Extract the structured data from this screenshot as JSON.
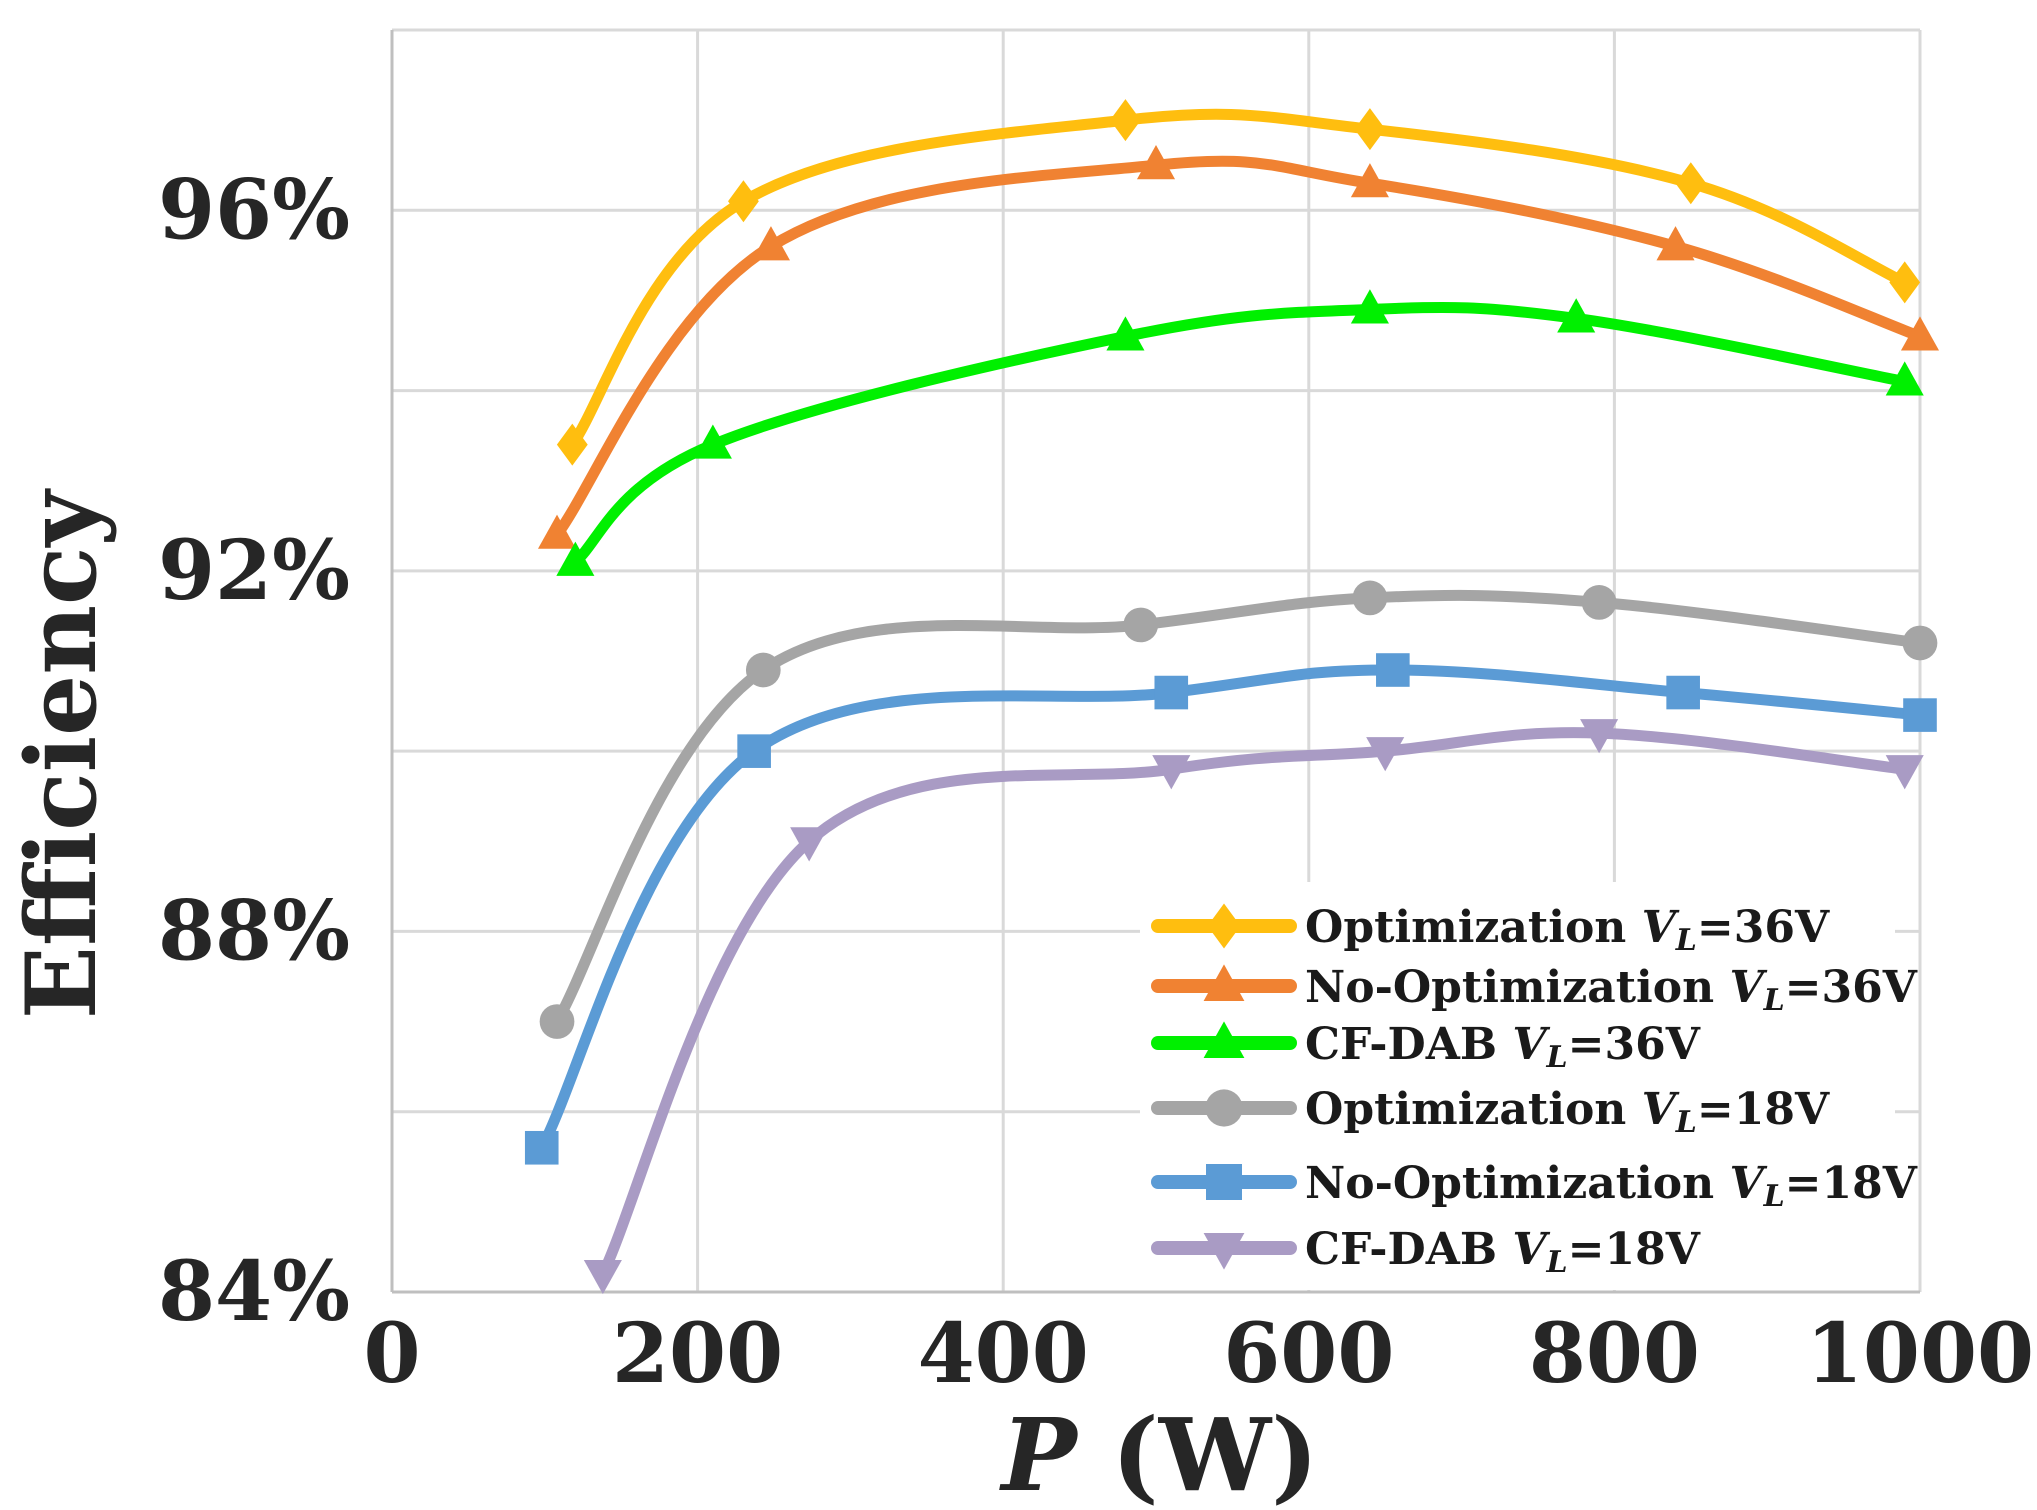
{
  "chart_data": {
    "type": "line",
    "title": "",
    "xlabel": {
      "symbol": "P",
      "unit": " (W)"
    },
    "ylabel": "Efficiency",
    "xlim": [
      0,
      1000
    ],
    "ylim": [
      84,
      98
    ],
    "x_ticks": [
      0,
      200,
      400,
      600,
      800,
      1000
    ],
    "x_tick_labels": [
      "0",
      "200",
      "400",
      "600",
      "800",
      "1000"
    ],
    "y_ticks": [
      84,
      88,
      92,
      96
    ],
    "y_tick_labels": [
      "84%",
      "88%",
      "92%",
      "96%"
    ],
    "y_minor_gridlines": [
      86,
      90,
      94
    ],
    "grid": true,
    "legend_position": "bottom-right",
    "series": [
      {
        "name": "Optimization",
        "vl_label": "V",
        "vl_sub": "L",
        "vl_value": "=36V",
        "color": "#FFBE0F",
        "marker": "diamond",
        "x": [
          118,
          230,
          480,
          640,
          850,
          990
        ],
        "y": [
          93.4,
          96.1,
          97.0,
          96.9,
          96.3,
          95.2
        ]
      },
      {
        "name": "No-Optimization",
        "vl_label": "V",
        "vl_sub": "L",
        "vl_value": "=36V",
        "color": "#F08232",
        "marker": "triangle-up",
        "x": [
          108,
          248,
          500,
          640,
          840,
          1000
        ],
        "y": [
          92.4,
          95.6,
          96.5,
          96.3,
          95.6,
          94.6
        ]
      },
      {
        "name": "CF-DAB",
        "vl_label": "V",
        "vl_sub": "L",
        "vl_value": "=36V",
        "color": "#00F000",
        "marker": "triangle-up",
        "x": [
          120,
          210,
          480,
          640,
          775,
          990
        ],
        "y": [
          92.1,
          93.4,
          94.6,
          94.9,
          94.8,
          94.1
        ]
      },
      {
        "name": "Optimization",
        "vl_label": "V",
        "vl_sub": "L",
        "vl_value": "=18V",
        "color": "#A5A5A5",
        "marker": "circle",
        "x": [
          108,
          243,
          490,
          640,
          790,
          1000
        ],
        "y": [
          87.0,
          90.9,
          91.4,
          91.7,
          91.65,
          91.2
        ]
      },
      {
        "name": "No-Optimization",
        "vl_label": "V",
        "vl_sub": "L",
        "vl_value": "=18V",
        "color": "#5B9BD5",
        "marker": "square",
        "x": [
          98,
          237,
          510,
          655,
          845,
          1000
        ],
        "y": [
          85.6,
          90.0,
          90.65,
          90.9,
          90.65,
          90.4
        ]
      },
      {
        "name": "CF-DAB",
        "vl_label": "V",
        "vl_sub": "L",
        "vl_value": "=18V",
        "color": "#A99BC4",
        "marker": "triangle-down",
        "x": [
          138,
          273,
          510,
          650,
          790,
          990
        ],
        "y": [
          84.2,
          89.0,
          89.8,
          90.0,
          90.2,
          89.8
        ]
      }
    ]
  }
}
